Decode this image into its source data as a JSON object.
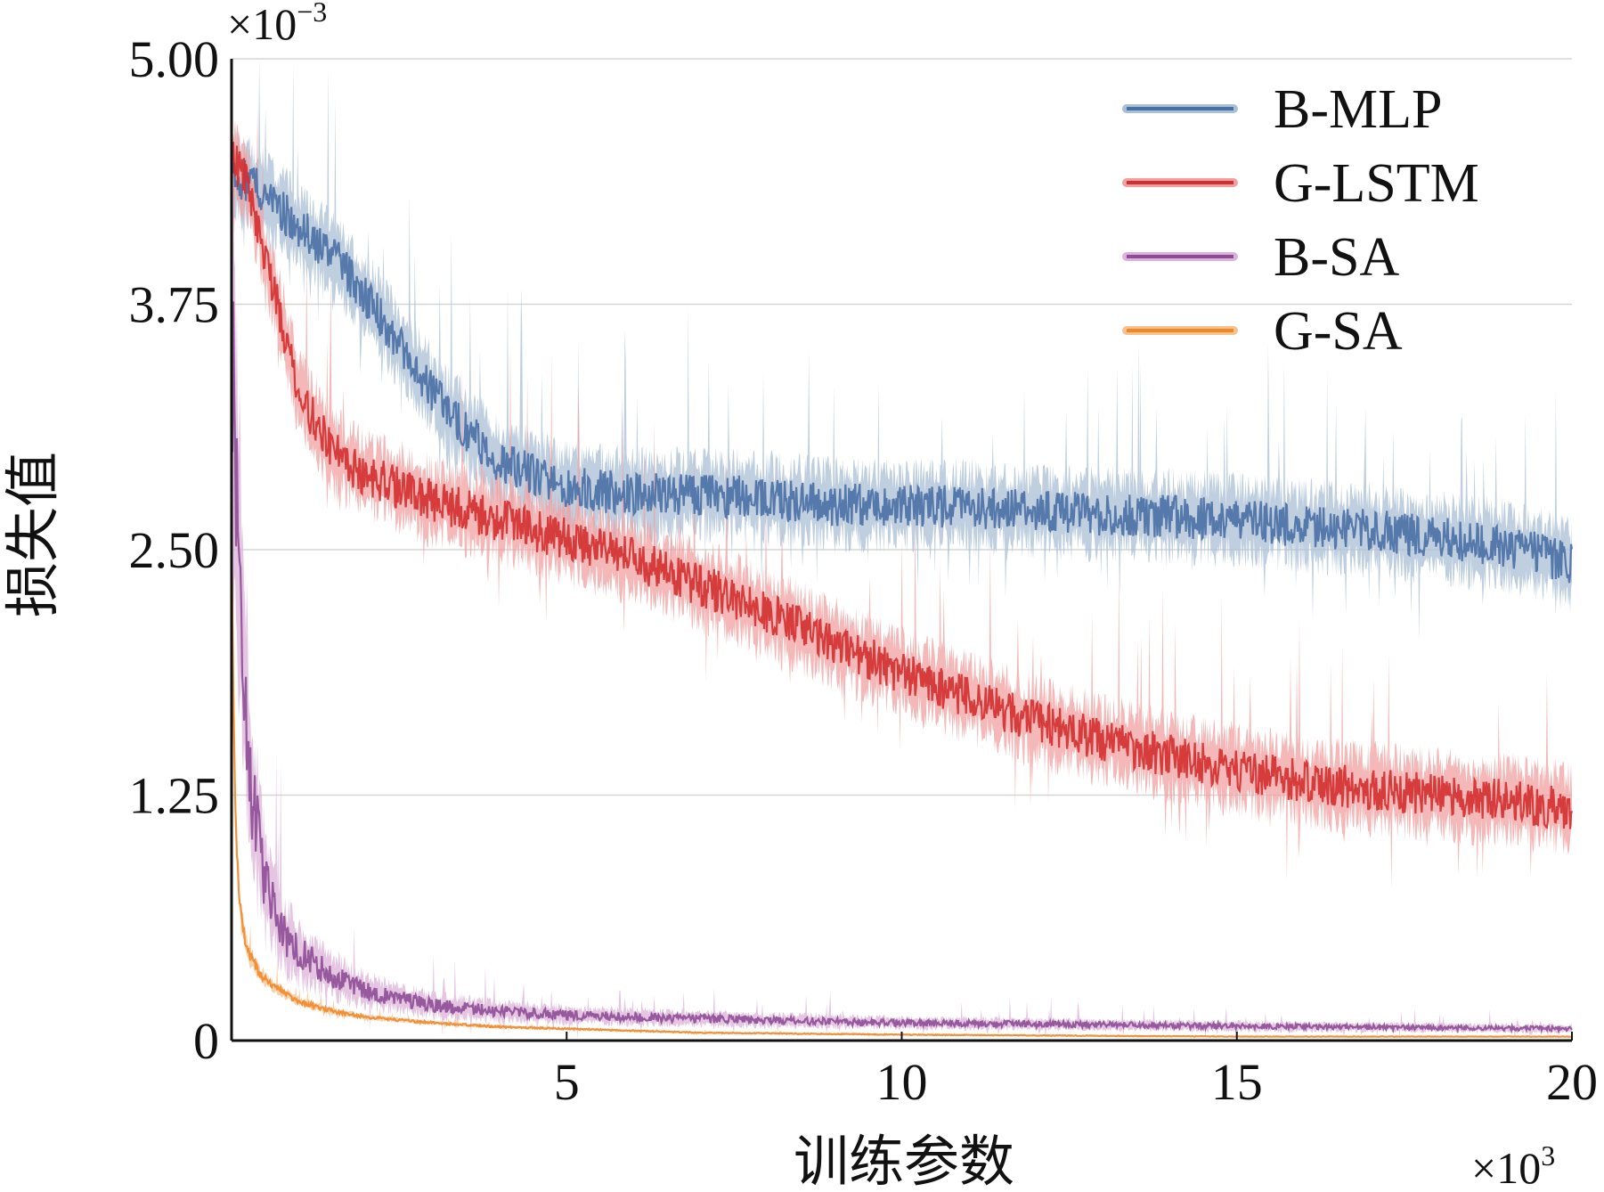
{
  "chart_data": {
    "type": "line",
    "xlabel": "训练参数",
    "ylabel": "损失值",
    "x_multiplier": {
      "base": "×10",
      "exp": "3"
    },
    "y_multiplier": {
      "base": "×10",
      "exp": "−3"
    },
    "xlim": [
      0,
      20
    ],
    "ylim": [
      0,
      5.0
    ],
    "x_ticks": [
      5,
      10,
      15,
      20
    ],
    "x_tick_labels": [
      "5",
      "10",
      "15",
      "20"
    ],
    "y_ticks": [
      0,
      1.25,
      2.5,
      3.75,
      5.0
    ],
    "y_tick_labels": [
      "0",
      "1.25",
      "2.50",
      "3.75",
      "5.00"
    ],
    "grid": "faint",
    "legend_position": "top-right",
    "series": [
      {
        "name": "B-MLP",
        "color": "#4a6fa5",
        "band_color": "#a9bfd6",
        "x": [
          0,
          0.25,
          0.5,
          1,
          1.5,
          2,
          2.5,
          3,
          3.5,
          4,
          5,
          6,
          7,
          8,
          9,
          10,
          11,
          12,
          13,
          14,
          15,
          16,
          17,
          18,
          19,
          19.5,
          20
        ],
        "values": [
          4.4,
          4.38,
          4.3,
          4.15,
          4.0,
          3.8,
          3.55,
          3.3,
          3.1,
          2.95,
          2.82,
          2.78,
          2.78,
          2.76,
          2.73,
          2.72,
          2.72,
          2.7,
          2.68,
          2.67,
          2.65,
          2.62,
          2.6,
          2.56,
          2.52,
          2.48,
          2.42
        ]
      },
      {
        "name": "G-LSTM",
        "color": "#d42f2f",
        "band_color": "#f0a0a0",
        "x": [
          0,
          0.25,
          0.5,
          1,
          1.5,
          2,
          3,
          4,
          5,
          6,
          7,
          8,
          9,
          10,
          11,
          12,
          13,
          14,
          15,
          16,
          17,
          18,
          19,
          19.5,
          20
        ],
        "values": [
          4.5,
          4.35,
          4.0,
          3.3,
          3.0,
          2.88,
          2.75,
          2.65,
          2.55,
          2.45,
          2.32,
          2.18,
          2.02,
          1.87,
          1.75,
          1.62,
          1.53,
          1.45,
          1.38,
          1.32,
          1.28,
          1.25,
          1.22,
          1.2,
          1.18
        ]
      },
      {
        "name": "B-SA",
        "color": "#8e4c96",
        "band_color": "#dcb2d8",
        "x": [
          0,
          0.1,
          0.2,
          0.3,
          0.5,
          0.75,
          1,
          1.5,
          2,
          3,
          4,
          5,
          7,
          10,
          13,
          16,
          20
        ],
        "values": [
          3.4,
          2.6,
          1.8,
          1.25,
          0.8,
          0.55,
          0.45,
          0.33,
          0.25,
          0.18,
          0.15,
          0.13,
          0.11,
          0.09,
          0.08,
          0.07,
          0.06
        ]
      },
      {
        "name": "G-SA",
        "color": "#f0882a",
        "band_color": "#f6c28d",
        "x": [
          0,
          0.05,
          0.1,
          0.15,
          0.25,
          0.4,
          0.6,
          1,
          1.5,
          2,
          3,
          4,
          5,
          7,
          10,
          15,
          20
        ],
        "values": [
          2.5,
          1.3,
          0.8,
          0.6,
          0.45,
          0.35,
          0.28,
          0.2,
          0.15,
          0.12,
          0.09,
          0.07,
          0.06,
          0.04,
          0.03,
          0.02,
          0.02
        ]
      }
    ]
  }
}
